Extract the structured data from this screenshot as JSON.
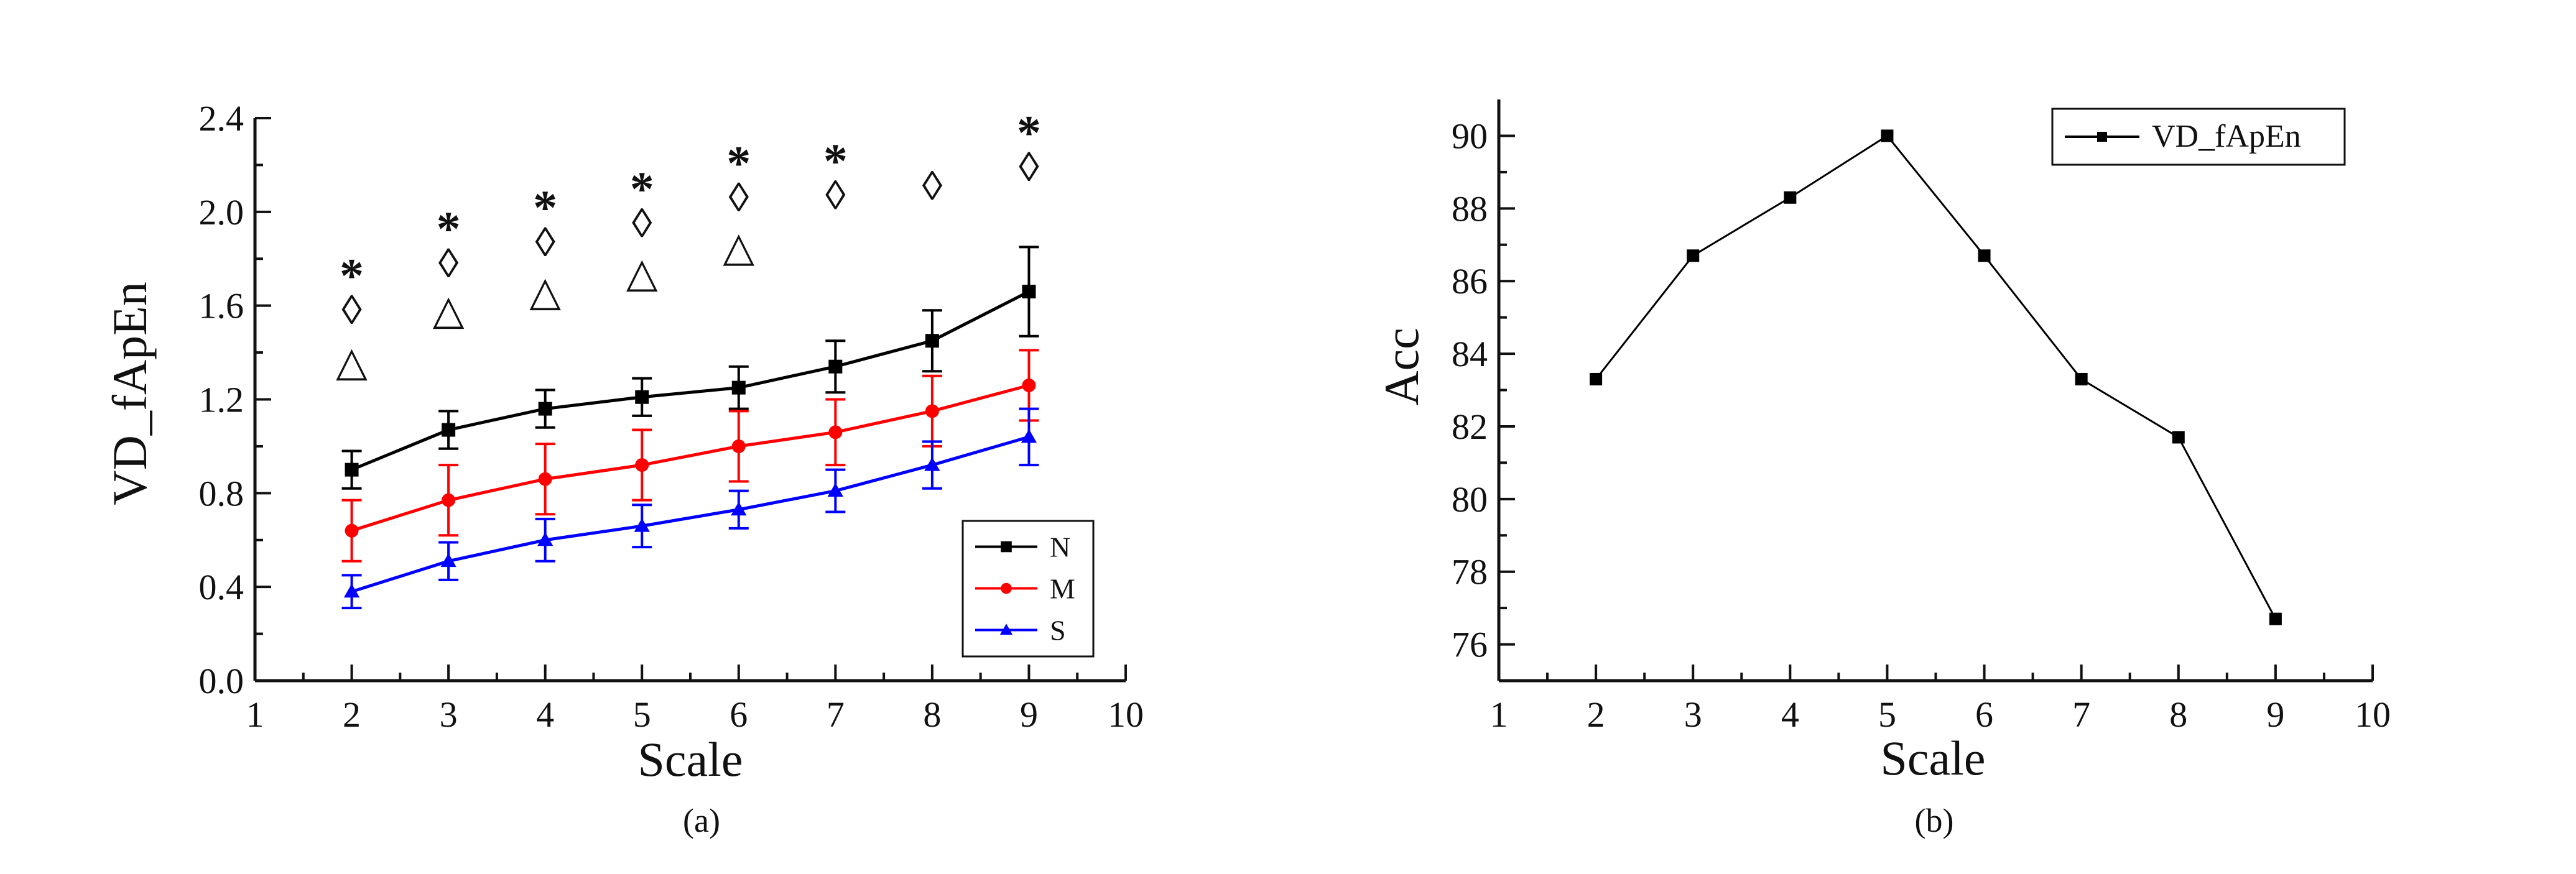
{
  "chart_data": [
    {
      "panel": "a",
      "type": "line",
      "panel_label": "(a)",
      "xlabel": "Scale",
      "ylabel": "VD_fApEn",
      "xlim": [
        1,
        10
      ],
      "ylim": [
        0.0,
        2.4
      ],
      "xticks": [
        1,
        2,
        3,
        4,
        5,
        6,
        7,
        8,
        9,
        10
      ],
      "yticks": [
        0.0,
        0.4,
        0.8,
        1.2,
        1.6,
        2.0,
        2.4
      ],
      "ytick_labels": [
        "0.0",
        "0.4",
        "0.8",
        "1.2",
        "1.6",
        "2.0",
        "2.4"
      ],
      "legend_position": "lower-right",
      "x": [
        2,
        3,
        4,
        5,
        6,
        7,
        8,
        9
      ],
      "series": [
        {
          "name": "N",
          "color": "#000000",
          "marker": "square",
          "values": [
            0.9,
            1.07,
            1.16,
            1.21,
            1.25,
            1.34,
            1.45,
            1.66
          ],
          "errors": [
            0.08,
            0.08,
            0.08,
            0.08,
            0.09,
            0.11,
            0.13,
            0.19
          ]
        },
        {
          "name": "M",
          "color": "#ff0000",
          "marker": "circle",
          "values": [
            0.64,
            0.77,
            0.86,
            0.92,
            1.0,
            1.06,
            1.15,
            1.26
          ],
          "errors": [
            0.13,
            0.15,
            0.15,
            0.15,
            0.15,
            0.14,
            0.15,
            0.15
          ]
        },
        {
          "name": "S",
          "color": "#0000ff",
          "marker": "triangle",
          "values": [
            0.38,
            0.51,
            0.6,
            0.66,
            0.73,
            0.81,
            0.92,
            1.04
          ],
          "errors": [
            0.07,
            0.08,
            0.09,
            0.09,
            0.08,
            0.09,
            0.1,
            0.12
          ]
        }
      ],
      "annotations": [
        {
          "text": "*",
          "x": 2,
          "y": 1.77
        },
        {
          "text": "◊",
          "x": 2,
          "y": 1.58
        },
        {
          "text": "△",
          "x": 2,
          "y": 1.36
        },
        {
          "text": "*",
          "x": 3,
          "y": 1.97
        },
        {
          "text": "◊",
          "x": 3,
          "y": 1.78
        },
        {
          "text": "△",
          "x": 3,
          "y": 1.58
        },
        {
          "text": "*",
          "x": 4,
          "y": 2.06
        },
        {
          "text": "◊",
          "x": 4,
          "y": 1.87
        },
        {
          "text": "△",
          "x": 4,
          "y": 1.66
        },
        {
          "text": "*",
          "x": 5,
          "y": 2.14
        },
        {
          "text": "◊",
          "x": 5,
          "y": 1.95
        },
        {
          "text": "△",
          "x": 5,
          "y": 1.74
        },
        {
          "text": "*",
          "x": 6,
          "y": 2.25
        },
        {
          "text": "◊",
          "x": 6,
          "y": 2.06
        },
        {
          "text": "△",
          "x": 6,
          "y": 1.85
        },
        {
          "text": "*",
          "x": 7,
          "y": 2.26
        },
        {
          "text": "◊",
          "x": 7,
          "y": 2.07
        },
        {
          "text": "◊",
          "x": 8,
          "y": 2.11
        },
        {
          "text": "*",
          "x": 9,
          "y": 2.38
        },
        {
          "text": "◊",
          "x": 9,
          "y": 2.19
        }
      ]
    },
    {
      "panel": "b",
      "type": "line",
      "panel_label": "(b)",
      "xlabel": "Scale",
      "ylabel": "Acc",
      "xlim": [
        1,
        10
      ],
      "ylim": [
        75,
        91
      ],
      "xticks": [
        1,
        2,
        3,
        4,
        5,
        6,
        7,
        8,
        9,
        10
      ],
      "yticks": [
        76,
        78,
        80,
        82,
        84,
        86,
        88,
        90
      ],
      "legend_position": "top-right",
      "x": [
        2,
        3,
        4,
        5,
        6,
        7,
        8,
        9
      ],
      "series": [
        {
          "name": "VD_fApEn",
          "color": "#000000",
          "marker": "square",
          "values": [
            83.3,
            86.7,
            88.3,
            90.0,
            86.7,
            83.3,
            81.7,
            76.7
          ]
        }
      ]
    }
  ]
}
